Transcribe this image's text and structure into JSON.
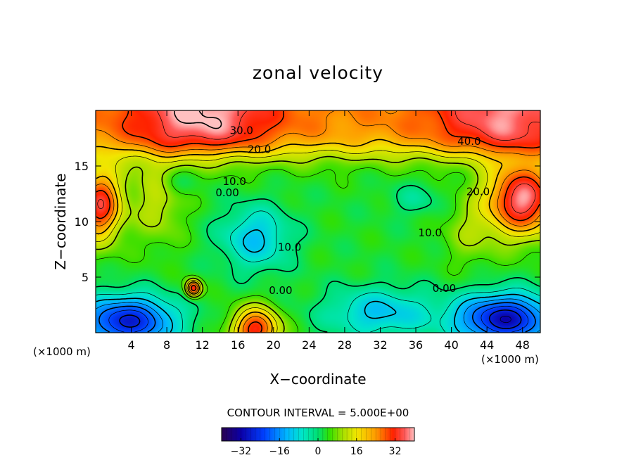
{
  "chart_data": {
    "type": "contour",
    "title": "zonal velocity",
    "xlabel": "X−coordinate",
    "ylabel": "Z−coordinate",
    "x_unit_label": "(×1000 m)",
    "x_unit_label_right": "(×1000 m)",
    "xlim": [
      0,
      50
    ],
    "ylim": [
      0,
      20
    ],
    "x_ticks": [
      4,
      8,
      12,
      16,
      20,
      24,
      28,
      32,
      36,
      40,
      44,
      48
    ],
    "x_tick_labels": [
      "4",
      "8",
      "12",
      "16",
      "20",
      "24",
      "28",
      "32",
      "36",
      "40",
      "44",
      "48"
    ],
    "y_ticks": [
      5,
      10,
      15
    ],
    "y_tick_labels": [
      "5",
      "10",
      "15"
    ],
    "contour_interval_text": "CONTOUR INTERVAL = 5.000E+00",
    "contour_interval": 5.0,
    "contour_labels": [
      {
        "text": "30.0",
        "x": 16.4,
        "z": 18.2
      },
      {
        "text": "20.0",
        "x": 18.4,
        "z": 16.5
      },
      {
        "text": "40.0",
        "x": 42.0,
        "z": 17.2
      },
      {
        "text": "10.0",
        "x": 15.6,
        "z": 13.6
      },
      {
        "text": "0.00",
        "x": 14.8,
        "z": 12.6
      },
      {
        "text": "20.0",
        "x": 43.0,
        "z": 12.7
      },
      {
        "text": "10.0",
        "x": 37.6,
        "z": 9.0
      },
      {
        "text": "10.0",
        "x": 21.8,
        "z": 7.7
      },
      {
        "text": "0.00",
        "x": 20.8,
        "z": 3.8
      },
      {
        "text": "0.00",
        "x": 39.2,
        "z": 4.0
      }
    ],
    "features": [
      {
        "kind": "max",
        "x": 48,
        "z": 12.0,
        "value": 38
      },
      {
        "kind": "max",
        "x": 1,
        "z": 11.5,
        "value": 34
      },
      {
        "kind": "min",
        "x": 18,
        "z": 8.0,
        "value": -10
      },
      {
        "kind": "min",
        "x": 4,
        "z": 1.0,
        "value": -33
      },
      {
        "kind": "min",
        "x": 46,
        "z": 1.2,
        "value": -35
      },
      {
        "kind": "max",
        "x": 18,
        "z": 0.5,
        "value": 32
      },
      {
        "kind": "max",
        "x": 11,
        "z": 4.0,
        "value": 33
      }
    ],
    "colorbar": {
      "min": -40,
      "max": 40,
      "ticks": [
        -32,
        -16,
        0,
        16,
        32
      ],
      "tick_labels": [
        "−32",
        "−16",
        "0",
        "16",
        "32"
      ]
    }
  },
  "colors": {
    "saturation": "#ffffff",
    "contour_line": "#000000",
    "scale": [
      "#2a0050",
      "#0b00a8",
      "#0040ff",
      "#00b8ff",
      "#00e6c8",
      "#00e070",
      "#33e000",
      "#a8e000",
      "#f2e600",
      "#ff9a00",
      "#ff2200",
      "#ff5a5a",
      "#ffc0c0"
    ]
  }
}
